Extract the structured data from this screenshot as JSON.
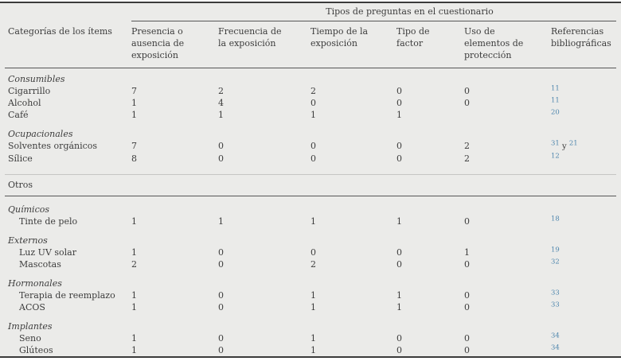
{
  "table": {
    "span_header": "Tipos de preguntas en el cuestionario",
    "columns": [
      "Categorías de los ítems",
      "Presencia o\nausencia de\nexposición",
      "Frecuencia de\nla exposición",
      "Tiempo de la\nexposición",
      "Tipo de\nfactor",
      "Uso de\nelementos de\nprotección",
      "Referencias\nbibliográficas"
    ],
    "rows": [
      {
        "type": "group",
        "label": "Consumibles"
      },
      {
        "type": "item",
        "label": "Cigarrillo",
        "indent": false,
        "values": [
          "7",
          "2",
          "2",
          "0",
          "0"
        ],
        "refs": [
          {
            "sup": "11"
          }
        ]
      },
      {
        "type": "item",
        "label": "Alcohol",
        "indent": false,
        "values": [
          "1",
          "4",
          "0",
          "0",
          "0"
        ],
        "refs": [
          {
            "sup": "11"
          }
        ]
      },
      {
        "type": "item",
        "label": "Café",
        "indent": false,
        "values": [
          "1",
          "1",
          "1",
          "1",
          ""
        ],
        "refs": [
          {
            "sup": "20"
          }
        ]
      },
      {
        "type": "group",
        "label": "Ocupacionales"
      },
      {
        "type": "item",
        "label": "Solventes orgánicos",
        "indent": false,
        "values": [
          "7",
          "0",
          "0",
          "0",
          "2"
        ],
        "refs": [
          {
            "sup": "31"
          },
          {
            "text": " y "
          },
          {
            "sup": "21"
          }
        ]
      },
      {
        "type": "item",
        "label": "Sílice",
        "indent": false,
        "values": [
          "8",
          "0",
          "0",
          "0",
          "2"
        ],
        "refs": [
          {
            "sup": "12"
          }
        ]
      },
      {
        "type": "section",
        "label": "Otros"
      },
      {
        "type": "group",
        "label": "Químicos"
      },
      {
        "type": "item",
        "label": "Tinte de pelo",
        "indent": true,
        "values": [
          "1",
          "1",
          "1",
          "1",
          "0"
        ],
        "refs": [
          {
            "sup": "18"
          }
        ]
      },
      {
        "type": "group",
        "label": "Externos"
      },
      {
        "type": "item",
        "label": "Luz UV solar",
        "indent": true,
        "values": [
          "1",
          "0",
          "0",
          "0",
          "1"
        ],
        "refs": [
          {
            "sup": "19"
          }
        ]
      },
      {
        "type": "item",
        "label": "Mascotas",
        "indent": true,
        "values": [
          "2",
          "0",
          "2",
          "0",
          "0"
        ],
        "refs": [
          {
            "sup": "32"
          }
        ]
      },
      {
        "type": "group",
        "label": "Hormonales"
      },
      {
        "type": "item",
        "label": "Terapia de reemplazo",
        "indent": true,
        "values": [
          "1",
          "0",
          "1",
          "1",
          "0"
        ],
        "refs": [
          {
            "sup": "33"
          }
        ]
      },
      {
        "type": "item",
        "label": "ACOS",
        "indent": true,
        "values": [
          "1",
          "0",
          "1",
          "1",
          "0"
        ],
        "refs": [
          {
            "sup": "33"
          }
        ]
      },
      {
        "type": "group",
        "label": "Implantes"
      },
      {
        "type": "item",
        "label": "Seno",
        "indent": true,
        "values": [
          "1",
          "0",
          "1",
          "0",
          "0"
        ],
        "refs": [
          {
            "sup": "34"
          }
        ]
      },
      {
        "type": "item",
        "label": "Glúteos",
        "indent": true,
        "values": [
          "1",
          "0",
          "1",
          "0",
          "0"
        ],
        "refs": [
          {
            "sup": "34"
          }
        ]
      }
    ]
  },
  "colors": {
    "background": "#ebebe9",
    "text": "#3c3c3c",
    "reference_link": "#4e86ad",
    "rule_dark": "#565656",
    "rule_light": "#c6c6c4",
    "border_heavy": "#3b3b3b"
  }
}
